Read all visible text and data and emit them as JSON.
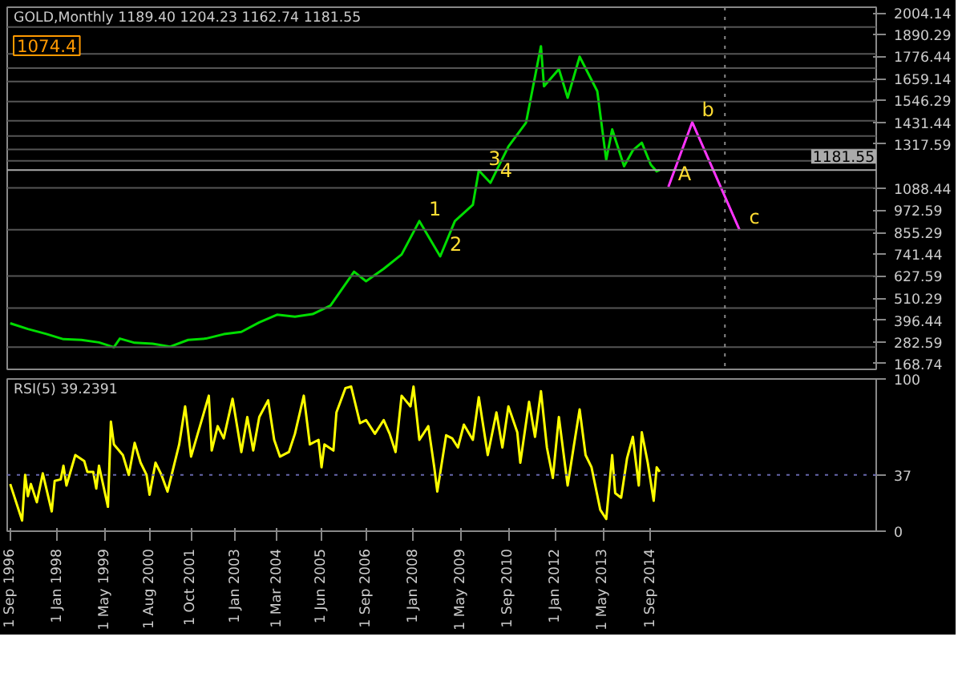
{
  "chart_data": [
    {
      "type": "line",
      "title": "GOLD,Monthly 1189.40 1204.23 1162.74 1181.55",
      "tick_labels": "y",
      "grid": false,
      "marker": "none",
      "line_style": "solid",
      "xlim": [
        "1996-08",
        "2021-01"
      ],
      "ylim": [
        139,
        2034
      ],
      "yticks": [
        2004.14,
        1890.29,
        1776.44,
        1659.14,
        1546.29,
        1431.44,
        1317.59,
        1088.44,
        972.59,
        855.29,
        741.44,
        627.59,
        510.29,
        396.44,
        282.59,
        168.74
      ],
      "series": [
        {
          "color": "#00dd00",
          "x": [
            "1996-09",
            "1997-03",
            "1997-09",
            "1998-03",
            "1998-09",
            "1999-03",
            "1999-08",
            "1999-10",
            "2000-03",
            "2000-09",
            "2001-03",
            "2001-09",
            "2002-03",
            "2002-09",
            "2003-03",
            "2003-09",
            "2004-03",
            "2004-09",
            "2005-03",
            "2005-09",
            "2006-05",
            "2006-09",
            "2007-03",
            "2007-09",
            "2008-03",
            "2008-10",
            "2009-03",
            "2009-09",
            "2009-11",
            "2010-03",
            "2010-09",
            "2011-03",
            "2011-08",
            "2011-09",
            "2012-02",
            "2012-05",
            "2012-09",
            "2013-03",
            "2013-06",
            "2013-08",
            "2013-12",
            "2014-03",
            "2014-06",
            "2014-09",
            "2014-11",
            "2014-12"
          ],
          "values": [
            380,
            350,
            325,
            297,
            293,
            280,
            255,
            300,
            278,
            273,
            258,
            293,
            300,
            323,
            335,
            385,
            425,
            415,
            428,
            473,
            650,
            600,
            665,
            740,
            915,
            730,
            915,
            1000,
            1180,
            1115,
            1305,
            1430,
            1830,
            1620,
            1710,
            1560,
            1775,
            1595,
            1235,
            1395,
            1202,
            1285,
            1325,
            1210,
            1175,
            1182
          ]
        },
        {
          "color": "#ff33ff",
          "x": [
            "2015-03",
            "2015-11",
            "2017-03"
          ],
          "values": [
            1094,
            1432,
            868
          ]
        }
      ],
      "ref_lines": [
        {
          "axis": "y",
          "value": 1930,
          "color": "#555555"
        },
        {
          "axis": "y",
          "value": 1790,
          "color": "#555555"
        },
        {
          "axis": "y",
          "value": 1715,
          "color": "#555555"
        },
        {
          "axis": "y",
          "value": 1645,
          "color": "#555555"
        },
        {
          "axis": "y",
          "value": 1540,
          "color": "#555555"
        },
        {
          "axis": "y",
          "value": 1440,
          "color": "#555555"
        },
        {
          "axis": "y",
          "value": 1360,
          "color": "#555555"
        },
        {
          "axis": "y",
          "value": 1290,
          "color": "#555555"
        },
        {
          "axis": "y",
          "value": 1230,
          "color": "#555555"
        },
        {
          "axis": "y",
          "value": 1089,
          "color": "#555555"
        },
        {
          "axis": "y",
          "value": 870,
          "color": "#555555"
        },
        {
          "axis": "y",
          "value": 627,
          "color": "#555555"
        },
        {
          "axis": "y",
          "value": 460,
          "color": "#555555"
        },
        {
          "axis": "y",
          "value": 255,
          "color": "#555555"
        },
        {
          "axis": "y",
          "value": 1181.55,
          "label": "1181.55",
          "color": "#aaaaaa"
        },
        {
          "axis": "x",
          "value": "2016-10",
          "color": "#888888",
          "line_style": "dotted"
        }
      ],
      "annotations": [
        {
          "text": "1",
          "x": "2008-03",
          "y": 915
        },
        {
          "text": "2",
          "x": "2008-10",
          "y": 730
        },
        {
          "text": "3",
          "x": "2009-11",
          "y": 1180
        },
        {
          "text": "4",
          "x": "2010-03",
          "y": 1115
        },
        {
          "text": "A",
          "x": "2015-03",
          "y": 1094
        },
        {
          "text": "b",
          "x": "2015-11",
          "y": 1432
        },
        {
          "text": "c",
          "x": "2017-03",
          "y": 868
        },
        "1074.4"
      ]
    },
    {
      "type": "line",
      "title": "RSI(5) 39.2391",
      "grid": false,
      "marker": "none",
      "line_style": "solid",
      "xlim": [
        "1996-08",
        "2021-01"
      ],
      "ylim": [
        0,
        100
      ],
      "yticks": [
        0,
        37,
        100
      ],
      "xticks": [
        {
          "value": "1996-09-01",
          "label": "1 Sep 1996"
        },
        {
          "value": "1998-01-01",
          "label": "1 Jan 1998"
        },
        {
          "value": "1999-05-01",
          "label": "1 May 1999"
        },
        {
          "value": "2000-08-01",
          "label": "1 Aug 2000"
        },
        {
          "value": "2001-10-01",
          "label": "1 Oct 2001"
        },
        {
          "value": "2003-01-01",
          "label": "1 Jan 2003"
        },
        {
          "value": "2004-03-01",
          "label": "1 Mar 2004"
        },
        {
          "value": "2005-06-01",
          "label": "1 Jun 2005"
        },
        {
          "value": "2006-09-01",
          "label": "1 Sep 2006"
        },
        {
          "value": "2008-01-01",
          "label": "1 Jan 2008"
        },
        {
          "value": "2009-05-01",
          "label": "1 May 2009"
        },
        {
          "value": "2010-09-01",
          "label": "1 Sep 2010"
        },
        {
          "value": "2012-01-01",
          "label": "1 Jan 2012"
        },
        {
          "value": "2013-05-01",
          "label": "1 May 2013"
        },
        {
          "value": "2014-09-01",
          "label": "1 Sep 2014"
        }
      ],
      "series": [
        {
          "color": "#ffff00",
          "x": [
            "1996-09",
            "1997-01",
            "1997-02",
            "1997-03",
            "1997-04",
            "1997-06",
            "1997-08",
            "1997-11",
            "1997-12",
            "1998-02",
            "1998-03",
            "1998-04",
            "1998-07",
            "1998-10",
            "1998-11",
            "1999-01",
            "1999-02",
            "1999-03",
            "1999-06",
            "1999-07",
            "1999-08",
            "1999-11",
            "2000-01",
            "2000-03",
            "2000-05",
            "2000-07",
            "2000-08",
            "2000-10",
            "2000-12",
            "2001-02",
            "2001-06",
            "2001-08",
            "2001-10",
            "2002-02",
            "2002-04",
            "2002-05",
            "2002-07",
            "2002-09",
            "2002-12",
            "2003-03",
            "2003-05",
            "2003-07",
            "2003-09",
            "2003-12",
            "2004-02",
            "2004-04",
            "2004-07",
            "2004-09",
            "2004-12",
            "2005-02",
            "2005-05",
            "2005-06",
            "2005-07",
            "2005-10",
            "2005-11",
            "2006-02",
            "2006-04",
            "2006-07",
            "2006-09",
            "2006-12",
            "2007-03",
            "2007-05",
            "2007-07",
            "2007-09",
            "2007-12",
            "2008-01",
            "2008-03",
            "2008-06",
            "2008-08",
            "2008-09",
            "2008-12",
            "2009-02",
            "2009-04",
            "2009-06",
            "2009-09",
            "2009-11",
            "2010-02",
            "2010-05",
            "2010-07",
            "2010-09",
            "2010-12",
            "2011-01",
            "2011-04",
            "2011-06",
            "2011-08",
            "2011-10",
            "2011-12",
            "2012-02",
            "2012-05",
            "2012-07",
            "2012-09",
            "2012-11",
            "2013-01",
            "2013-04",
            "2013-06",
            "2013-08",
            "2013-09",
            "2013-11",
            "2014-01",
            "2014-03",
            "2014-05",
            "2014-06",
            "2014-08",
            "2014-10",
            "2014-11",
            "2014-12"
          ],
          "values": [
            31,
            7,
            37,
            23,
            31,
            19,
            38,
            13,
            33,
            34,
            43,
            30,
            50,
            46,
            39,
            39,
            28,
            43,
            16,
            72,
            57,
            50,
            37,
            58,
            45,
            37,
            24,
            45,
            37,
            26,
            57,
            82,
            49,
            76,
            89,
            53,
            69,
            61,
            87,
            52,
            75,
            53,
            75,
            86,
            60,
            49,
            52,
            64,
            89,
            57,
            60,
            42,
            57,
            53,
            78,
            94,
            95,
            71,
            73,
            64,
            73,
            64,
            52,
            89,
            82,
            95,
            60,
            69,
            42,
            26,
            63,
            61,
            55,
            70,
            60,
            88,
            50,
            78,
            55,
            82,
            65,
            45,
            85,
            62,
            92,
            55,
            35,
            75,
            30,
            55,
            80,
            50,
            42,
            14,
            8,
            50,
            25,
            22,
            48,
            62,
            30,
            65,
            45,
            20,
            42,
            39
          ]
        }
      ],
      "ref_lines": [
        {
          "axis": "y",
          "value": 37,
          "color": "#6666aa",
          "line_style": "dotted"
        }
      ]
    }
  ]
}
